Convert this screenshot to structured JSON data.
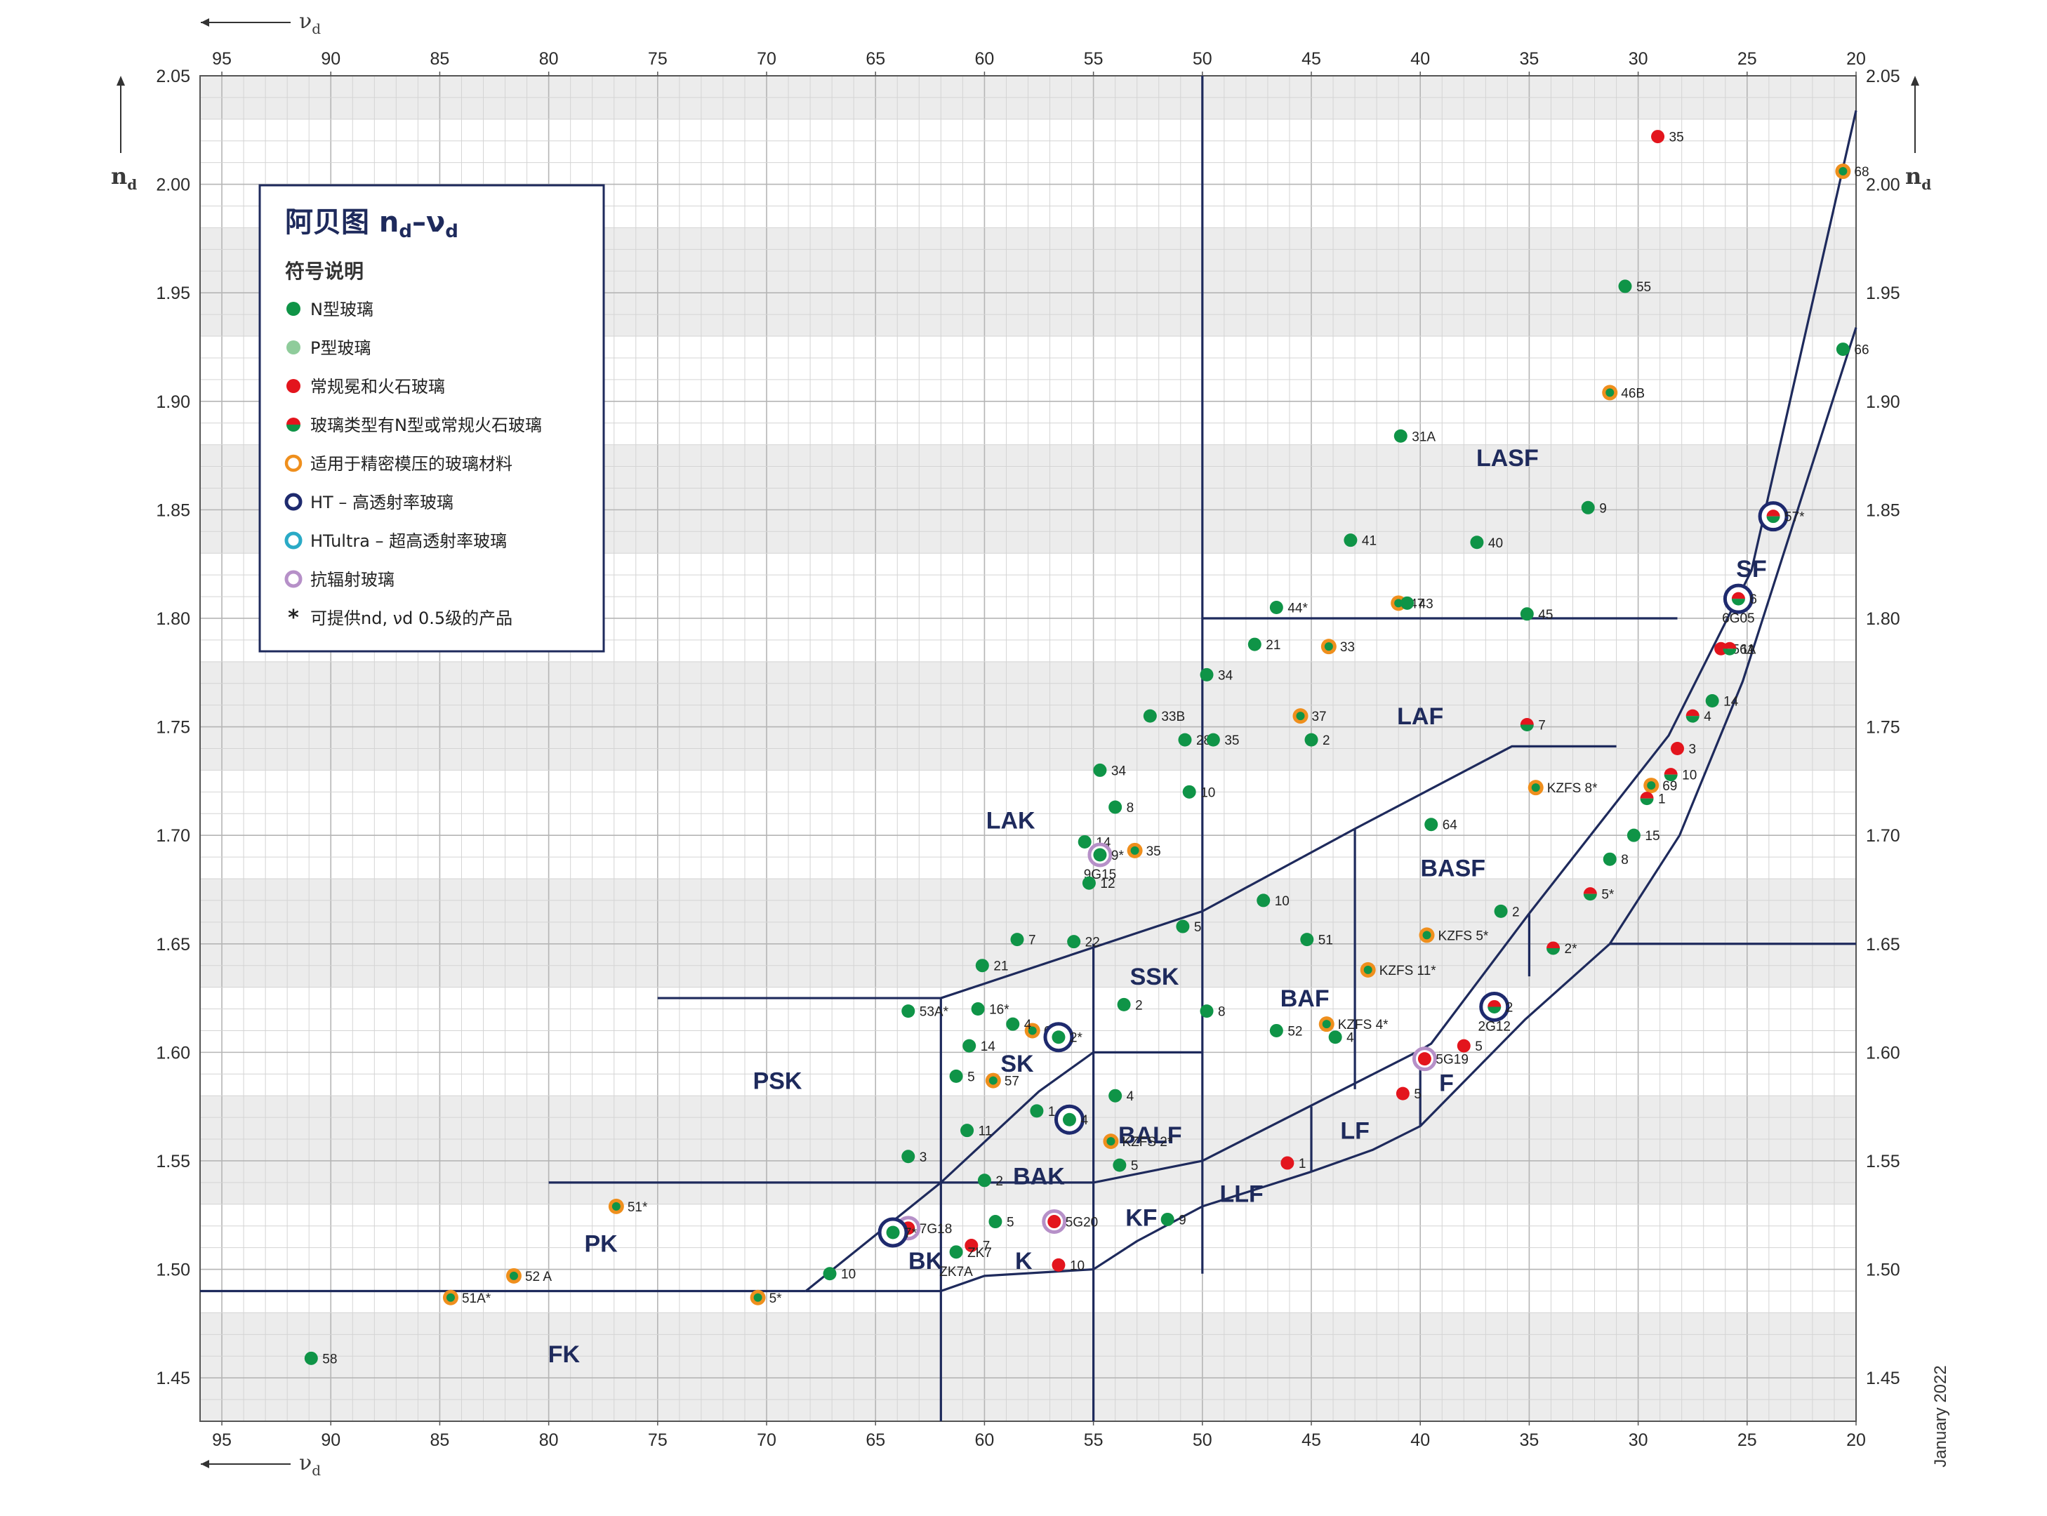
{
  "legend": {
    "title": "阿贝图 nd–νd",
    "subtitle": "符号说明",
    "items": [
      {
        "key": "N",
        "label": "N型玻璃"
      },
      {
        "key": "P",
        "label": "P型玻璃"
      },
      {
        "key": "R",
        "label": "常规冕和火石玻璃"
      },
      {
        "key": "NR",
        "label": "玻璃类型有N型或常规火石玻璃"
      },
      {
        "key": "M",
        "label": "适用于精密模压的玻璃材料"
      },
      {
        "key": "HT",
        "label": "HT – 高透射率玻璃"
      },
      {
        "key": "HTU",
        "label": "HTultra – 超高透射率玻璃"
      },
      {
        "key": "RAD",
        "label": "抗辐射玻璃"
      },
      {
        "key": "STAR",
        "label": "可提供nd, νd 0.5级的产品"
      }
    ]
  },
  "date": "January 2022",
  "colors": {
    "N": "#0f9447",
    "P": "#8fcc9b",
    "R": "#e3151d",
    "M": "#ef8f1d",
    "HT": "#1e2a6e",
    "HTU": "#2aaac6",
    "RAD": "#b690c8",
    "line": "#1e2a5c"
  },
  "chart_data": {
    "type": "scatter",
    "xlabel": "νd",
    "ylabel": "nd",
    "xlim": [
      96,
      20
    ],
    "ylim": [
      1.43,
      2.05
    ],
    "x_ticks": [
      95,
      90,
      85,
      80,
      75,
      70,
      65,
      60,
      55,
      50,
      45,
      40,
      35,
      30,
      25,
      20
    ],
    "y_ticks": [
      1.45,
      1.5,
      1.55,
      1.6,
      1.65,
      1.7,
      1.75,
      1.8,
      1.85,
      1.9,
      1.95,
      2.0,
      2.05
    ],
    "x_tick_labels": [
      "95",
      "90",
      "85",
      "80",
      "75",
      "70",
      "65",
      "60",
      "55",
      "50",
      "45",
      "40",
      "35",
      "30",
      "25",
      "20"
    ],
    "y_tick_labels": [
      "1.45",
      "1.50",
      "1.55",
      "1.60",
      "1.65",
      "1.70",
      "1.75",
      "1.80",
      "1.85",
      "1.90",
      "1.95",
      "2.00",
      "2.05"
    ],
    "regions": [
      {
        "label": "LASF",
        "x": 36,
        "y": 1.874
      },
      {
        "label": "SF",
        "x": 24.8,
        "y": 1.823
      },
      {
        "label": "LAF",
        "x": 40,
        "y": 1.755
      },
      {
        "label": "LAK",
        "x": 58.8,
        "y": 1.707
      },
      {
        "label": "BASF",
        "x": 38.5,
        "y": 1.685
      },
      {
        "label": "SSK",
        "x": 52.2,
        "y": 1.635
      },
      {
        "label": "BAF",
        "x": 45.3,
        "y": 1.625
      },
      {
        "label": "SK",
        "x": 58.5,
        "y": 1.595
      },
      {
        "label": "PSK",
        "x": 69.5,
        "y": 1.587
      },
      {
        "label": "F",
        "x": 38.8,
        "y": 1.586
      },
      {
        "label": "BALF",
        "x": 52.4,
        "y": 1.562
      },
      {
        "label": "LF",
        "x": 43,
        "y": 1.564
      },
      {
        "label": "BAK",
        "x": 57.5,
        "y": 1.543
      },
      {
        "label": "LLF",
        "x": 48.2,
        "y": 1.535
      },
      {
        "label": "KF",
        "x": 52.8,
        "y": 1.524
      },
      {
        "label": "PK",
        "x": 77.6,
        "y": 1.512
      },
      {
        "label": "BK",
        "x": 62.7,
        "y": 1.504
      },
      {
        "label": "K",
        "x": 58.2,
        "y": 1.504
      },
      {
        "label": "FK",
        "x": 79.3,
        "y": 1.461
      }
    ],
    "points": [
      {
        "label": "35",
        "x": 29.1,
        "y": 2.022,
        "type": "R"
      },
      {
        "label": "68",
        "x": 20.6,
        "y": 2.006,
        "type": "NM"
      },
      {
        "label": "55",
        "x": 30.6,
        "y": 1.953,
        "type": "N"
      },
      {
        "label": "66",
        "x": 20.6,
        "y": 1.924,
        "type": "N"
      },
      {
        "label": "46B",
        "x": 31.3,
        "y": 1.904,
        "type": "NM"
      },
      {
        "label": "31A",
        "x": 40.9,
        "y": 1.884,
        "type": "N"
      },
      {
        "label": "9",
        "x": 32.3,
        "y": 1.851,
        "type": "N"
      },
      {
        "label": "57*",
        "x": 23.8,
        "y": 1.847,
        "type": "NR",
        "rings": [
          "HTU",
          "HT"
        ]
      },
      {
        "label": "41",
        "x": 43.2,
        "y": 1.836,
        "type": "N"
      },
      {
        "label": "40",
        "x": 37.4,
        "y": 1.835,
        "type": "N"
      },
      {
        "label": "6",
        "x": 25.4,
        "y": 1.809,
        "type": "NR",
        "rings": [
          "HTU",
          "HT"
        ]
      },
      {
        "label": "6G05",
        "x": 25.4,
        "y": 1.809,
        "type": "RAD",
        "hidden": true
      },
      {
        "label": "47",
        "x": 41.0,
        "y": 1.807,
        "type": "NM"
      },
      {
        "label": "43",
        "x": 40.6,
        "y": 1.807,
        "type": "N"
      },
      {
        "label": "44*",
        "x": 46.6,
        "y": 1.805,
        "type": "N"
      },
      {
        "label": "45",
        "x": 35.1,
        "y": 1.802,
        "type": "N"
      },
      {
        "label": "21",
        "x": 47.6,
        "y": 1.788,
        "type": "N"
      },
      {
        "label": "33",
        "x": 44.2,
        "y": 1.787,
        "type": "NM"
      },
      {
        "label": "56A",
        "x": 26.2,
        "y": 1.786,
        "type": "R"
      },
      {
        "label": "11",
        "x": 25.8,
        "y": 1.786,
        "type": "NR"
      },
      {
        "label": "34",
        "x": 49.8,
        "y": 1.774,
        "type": "N"
      },
      {
        "label": "14",
        "x": 26.6,
        "y": 1.762,
        "type": "N"
      },
      {
        "label": "4",
        "x": 27.5,
        "y": 1.755,
        "type": "NR"
      },
      {
        "label": "33B",
        "x": 52.4,
        "y": 1.755,
        "type": "N"
      },
      {
        "label": "37",
        "x": 45.5,
        "y": 1.755,
        "type": "NM"
      },
      {
        "label": "7",
        "x": 35.1,
        "y": 1.751,
        "type": "NR"
      },
      {
        "label": "28",
        "x": 50.8,
        "y": 1.744,
        "type": "N"
      },
      {
        "label": "35",
        "x": 49.5,
        "y": 1.744,
        "type": "N"
      },
      {
        "label": "2",
        "x": 45.0,
        "y": 1.744,
        "type": "N"
      },
      {
        "label": "3",
        "x": 28.2,
        "y": 1.74,
        "type": "R"
      },
      {
        "label": "34",
        "x": 54.7,
        "y": 1.73,
        "type": "N"
      },
      {
        "label": "10",
        "x": 28.5,
        "y": 1.728,
        "type": "NR"
      },
      {
        "label": "69",
        "x": 29.4,
        "y": 1.723,
        "type": "NM"
      },
      {
        "label": "KZFS 8*",
        "x": 34.7,
        "y": 1.722,
        "type": "NM"
      },
      {
        "label": "10",
        "x": 50.6,
        "y": 1.72,
        "type": "N"
      },
      {
        "label": "1",
        "x": 29.6,
        "y": 1.717,
        "type": "NR"
      },
      {
        "label": "8",
        "x": 54.0,
        "y": 1.713,
        "type": "N"
      },
      {
        "label": "64",
        "x": 39.5,
        "y": 1.705,
        "type": "N"
      },
      {
        "label": "15",
        "x": 30.2,
        "y": 1.7,
        "type": "N"
      },
      {
        "label": "14",
        "x": 55.4,
        "y": 1.697,
        "type": "N"
      },
      {
        "label": "35",
        "x": 53.1,
        "y": 1.693,
        "type": "NM"
      },
      {
        "label": "9*",
        "x": 54.7,
        "y": 1.691,
        "type": "N",
        "rings": [
          "RAD"
        ]
      },
      {
        "label": "9G15",
        "x": 54.7,
        "y": 1.691,
        "type": "N",
        "hidden": true
      },
      {
        "label": "8",
        "x": 31.3,
        "y": 1.689,
        "type": "N"
      },
      {
        "label": "12",
        "x": 55.2,
        "y": 1.678,
        "type": "N"
      },
      {
        "label": "5*",
        "x": 32.2,
        "y": 1.673,
        "type": "NR"
      },
      {
        "label": "10",
        "x": 47.2,
        "y": 1.67,
        "type": "N"
      },
      {
        "label": "2",
        "x": 36.3,
        "y": 1.665,
        "type": "N"
      },
      {
        "label": "5",
        "x": 50.9,
        "y": 1.658,
        "type": "N"
      },
      {
        "label": "7",
        "x": 58.5,
        "y": 1.652,
        "type": "N"
      },
      {
        "label": "22",
        "x": 55.9,
        "y": 1.651,
        "type": "N"
      },
      {
        "label": "51",
        "x": 45.2,
        "y": 1.652,
        "type": "N"
      },
      {
        "label": "KZFS 5*",
        "x": 39.7,
        "y": 1.654,
        "type": "NM"
      },
      {
        "label": "2*",
        "x": 33.9,
        "y": 1.648,
        "type": "NR"
      },
      {
        "label": "21",
        "x": 60.1,
        "y": 1.64,
        "type": "N"
      },
      {
        "label": "KZFS 11*",
        "x": 42.4,
        "y": 1.638,
        "type": "NM"
      },
      {
        "label": "2",
        "x": 36.6,
        "y": 1.621,
        "type": "NR",
        "rings": [
          "HT"
        ]
      },
      {
        "label": "2G12",
        "x": 36.6,
        "y": 1.621,
        "type": "RAD",
        "hidden": true
      },
      {
        "label": "2",
        "x": 53.6,
        "y": 1.622,
        "type": "N"
      },
      {
        "label": "16*",
        "x": 60.3,
        "y": 1.62,
        "type": "N"
      },
      {
        "label": "53A*",
        "x": 63.5,
        "y": 1.619,
        "type": "N"
      },
      {
        "label": "8",
        "x": 49.8,
        "y": 1.619,
        "type": "N"
      },
      {
        "label": "KZFS 4*",
        "x": 44.3,
        "y": 1.613,
        "type": "NM"
      },
      {
        "label": "60",
        "x": 57.8,
        "y": 1.61,
        "type": "NM"
      },
      {
        "label": "4",
        "x": 58.7,
        "y": 1.613,
        "type": "N"
      },
      {
        "label": "52",
        "x": 46.6,
        "y": 1.61,
        "type": "N"
      },
      {
        "label": "2*",
        "x": 56.6,
        "y": 1.607,
        "type": "N",
        "rings": [
          "HT"
        ]
      },
      {
        "label": "4",
        "x": 43.9,
        "y": 1.607,
        "type": "N"
      },
      {
        "label": "14",
        "x": 60.7,
        "y": 1.603,
        "type": "N"
      },
      {
        "label": "5",
        "x": 38.0,
        "y": 1.603,
        "type": "R"
      },
      {
        "label": "5G19",
        "x": 39.8,
        "y": 1.597,
        "type": "R",
        "rings": [
          "RAD"
        ]
      },
      {
        "label": "5",
        "x": 61.3,
        "y": 1.589,
        "type": "N"
      },
      {
        "label": "57",
        "x": 59.6,
        "y": 1.587,
        "type": "NM"
      },
      {
        "label": "5",
        "x": 40.8,
        "y": 1.581,
        "type": "R"
      },
      {
        "label": "4",
        "x": 54.0,
        "y": 1.58,
        "type": "N"
      },
      {
        "label": "1",
        "x": 57.6,
        "y": 1.573,
        "type": "N"
      },
      {
        "label": "4",
        "x": 56.1,
        "y": 1.569,
        "type": "N",
        "rings": [
          "HT"
        ]
      },
      {
        "label": "11",
        "x": 60.8,
        "y": 1.564,
        "type": "N"
      },
      {
        "label": "KZFS 2*",
        "x": 54.2,
        "y": 1.559,
        "type": "NM"
      },
      {
        "label": "3",
        "x": 63.5,
        "y": 1.552,
        "type": "N"
      },
      {
        "label": "5",
        "x": 53.8,
        "y": 1.548,
        "type": "N"
      },
      {
        "label": "1",
        "x": 46.1,
        "y": 1.549,
        "type": "R"
      },
      {
        "label": "2",
        "x": 60.0,
        "y": 1.541,
        "type": "N"
      },
      {
        "label": "51*",
        "x": 76.9,
        "y": 1.529,
        "type": "NM"
      },
      {
        "label": "9",
        "x": 51.6,
        "y": 1.523,
        "type": "N"
      },
      {
        "label": "5",
        "x": 59.5,
        "y": 1.522,
        "type": "N"
      },
      {
        "label": "5G20",
        "x": 56.8,
        "y": 1.522,
        "type": "R",
        "rings": [
          "RAD"
        ]
      },
      {
        "label": "7G18",
        "x": 63.5,
        "y": 1.519,
        "type": "R",
        "rings": [
          "RAD"
        ]
      },
      {
        "label": "7*",
        "x": 64.2,
        "y": 1.517,
        "type": "N",
        "rings": [
          "HT"
        ]
      },
      {
        "label": "7",
        "x": 60.6,
        "y": 1.511,
        "type": "R"
      },
      {
        "label": "ZK7",
        "x": 61.3,
        "y": 1.508,
        "type": "N"
      },
      {
        "label": "ZK7A",
        "x": 61.3,
        "y": 1.508,
        "type": "N",
        "hidden": true
      },
      {
        "label": "10",
        "x": 56.6,
        "y": 1.502,
        "type": "R"
      },
      {
        "label": "10",
        "x": 67.1,
        "y": 1.498,
        "type": "N"
      },
      {
        "label": "52 A",
        "x": 81.6,
        "y": 1.497,
        "type": "NM"
      },
      {
        "label": "51A*",
        "x": 84.5,
        "y": 1.487,
        "type": "NM"
      },
      {
        "label": "5*",
        "x": 70.4,
        "y": 1.487,
        "type": "NM"
      },
      {
        "label": "58",
        "x": 90.9,
        "y": 1.459,
        "type": "N"
      }
    ]
  }
}
